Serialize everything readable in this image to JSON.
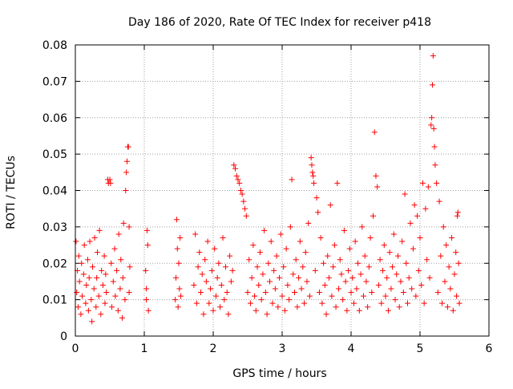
{
  "colors": {
    "marker": "#ff0000",
    "axis": "#000000",
    "grid": "#a0a0a0",
    "background": "#ffffff"
  },
  "chart_data": {
    "type": "scatter",
    "title": "Day 186 of 2020, Rate Of TEC Index for receiver p418",
    "xlabel": "GPS time / hours",
    "ylabel": "ROTI / TECUs",
    "xlim": [
      0,
      6
    ],
    "ylim": [
      0,
      0.08
    ],
    "x_ticks": [
      0,
      1,
      2,
      3,
      4,
      5,
      6
    ],
    "x_tick_labels": [
      "0",
      "1",
      "2",
      "3",
      "4",
      "5",
      "6"
    ],
    "y_ticks": [
      0,
      0.01,
      0.02,
      0.03,
      0.04,
      0.05,
      0.06,
      0.07,
      0.08
    ],
    "y_tick_labels": [
      "0",
      "0.01",
      "0.02",
      "0.03",
      "0.04",
      "0.05",
      "0.06",
      "0.07",
      "0.08"
    ],
    "grid": true,
    "marker": "+",
    "series": [
      {
        "name": "ROTI",
        "points": [
          [
            0.01,
            0.026
          ],
          [
            0.02,
            0.012
          ],
          [
            0.03,
            0.018
          ],
          [
            0.04,
            0.008
          ],
          [
            0.05,
            0.022
          ],
          [
            0.06,
            0.015
          ],
          [
            0.08,
            0.006
          ],
          [
            0.09,
            0.02
          ],
          [
            0.1,
            0.011
          ],
          [
            0.12,
            0.017
          ],
          [
            0.13,
            0.025
          ],
          [
            0.15,
            0.009
          ],
          [
            0.16,
            0.014
          ],
          [
            0.18,
            0.021
          ],
          [
            0.19,
            0.007
          ],
          [
            0.2,
            0.016
          ],
          [
            0.21,
            0.026
          ],
          [
            0.23,
            0.01
          ],
          [
            0.24,
            0.004
          ],
          [
            0.25,
            0.019
          ],
          [
            0.27,
            0.013
          ],
          [
            0.28,
            0.027
          ],
          [
            0.3,
            0.008
          ],
          [
            0.31,
            0.016
          ],
          [
            0.32,
            0.023
          ],
          [
            0.34,
            0.011
          ],
          [
            0.35,
            0.029
          ],
          [
            0.37,
            0.006
          ],
          [
            0.38,
            0.018
          ],
          [
            0.4,
            0.014
          ],
          [
            0.42,
            0.022
          ],
          [
            0.43,
            0.009
          ],
          [
            0.44,
            0.017
          ],
          [
            0.45,
            0.012
          ],
          [
            0.47,
            0.043
          ],
          [
            0.48,
            0.042
          ],
          [
            0.5,
            0.043
          ],
          [
            0.51,
            0.042
          ],
          [
            0.52,
            0.02
          ],
          [
            0.53,
            0.008
          ],
          [
            0.55,
            0.015
          ],
          [
            0.57,
            0.024
          ],
          [
            0.58,
            0.011
          ],
          [
            0.6,
            0.018
          ],
          [
            0.62,
            0.007
          ],
          [
            0.63,
            0.028
          ],
          [
            0.65,
            0.013
          ],
          [
            0.66,
            0.021
          ],
          [
            0.68,
            0.005
          ],
          [
            0.69,
            0.016
          ],
          [
            0.7,
            0.031
          ],
          [
            0.72,
            0.01
          ],
          [
            0.73,
            0.04
          ],
          [
            0.74,
            0.045
          ],
          [
            0.75,
            0.048
          ],
          [
            0.76,
            0.052
          ],
          [
            0.77,
            0.052
          ],
          [
            0.78,
            0.03
          ],
          [
            0.78,
            0.012
          ],
          [
            0.79,
            0.019
          ],
          [
            1.02,
            0.018
          ],
          [
            1.03,
            0.013
          ],
          [
            1.03,
            0.01
          ],
          [
            1.04,
            0.029
          ],
          [
            1.05,
            0.025
          ],
          [
            1.06,
            0.007
          ],
          [
            1.45,
            0.01
          ],
          [
            1.46,
            0.016
          ],
          [
            1.47,
            0.032
          ],
          [
            1.48,
            0.024
          ],
          [
            1.49,
            0.008
          ],
          [
            1.5,
            0.02
          ],
          [
            1.51,
            0.013
          ],
          [
            1.52,
            0.027
          ],
          [
            1.53,
            0.011
          ],
          [
            1.72,
            0.014
          ],
          [
            1.74,
            0.028
          ],
          [
            1.76,
            0.009
          ],
          [
            1.78,
            0.019
          ],
          [
            1.8,
            0.023
          ],
          [
            1.82,
            0.012
          ],
          [
            1.84,
            0.017
          ],
          [
            1.86,
            0.006
          ],
          [
            1.88,
            0.021
          ],
          [
            1.9,
            0.015
          ],
          [
            1.92,
            0.026
          ],
          [
            1.94,
            0.009
          ],
          [
            1.96,
            0.013
          ],
          [
            1.98,
            0.018
          ],
          [
            2.0,
            0.007
          ],
          [
            2.02,
            0.024
          ],
          [
            2.04,
            0.011
          ],
          [
            2.06,
            0.016
          ],
          [
            2.08,
            0.02
          ],
          [
            2.1,
            0.008
          ],
          [
            2.12,
            0.014
          ],
          [
            2.14,
            0.027
          ],
          [
            2.16,
            0.01
          ],
          [
            2.18,
            0.019
          ],
          [
            2.2,
            0.012
          ],
          [
            2.22,
            0.006
          ],
          [
            2.24,
            0.022
          ],
          [
            2.26,
            0.015
          ],
          [
            2.28,
            0.018
          ],
          [
            2.3,
            0.047
          ],
          [
            2.32,
            0.046
          ],
          [
            2.34,
            0.044
          ],
          [
            2.36,
            0.043
          ],
          [
            2.38,
            0.042
          ],
          [
            2.4,
            0.04
          ],
          [
            2.42,
            0.039
          ],
          [
            2.44,
            0.037
          ],
          [
            2.46,
            0.035
          ],
          [
            2.48,
            0.033
          ],
          [
            2.5,
            0.012
          ],
          [
            2.52,
            0.021
          ],
          [
            2.54,
            0.009
          ],
          [
            2.56,
            0.016
          ],
          [
            2.58,
            0.025
          ],
          [
            2.6,
            0.011
          ],
          [
            2.62,
            0.007
          ],
          [
            2.64,
            0.019
          ],
          [
            2.66,
            0.014
          ],
          [
            2.68,
            0.023
          ],
          [
            2.7,
            0.01
          ],
          [
            2.72,
            0.017
          ],
          [
            2.74,
            0.029
          ],
          [
            2.76,
            0.012
          ],
          [
            2.78,
            0.006
          ],
          [
            2.8,
            0.02
          ],
          [
            2.82,
            0.015
          ],
          [
            2.84,
            0.026
          ],
          [
            2.86,
            0.009
          ],
          [
            2.88,
            0.018
          ],
          [
            2.9,
            0.013
          ],
          [
            2.92,
            0.022
          ],
          [
            2.94,
            0.008
          ],
          [
            2.96,
            0.016
          ],
          [
            2.98,
            0.028
          ],
          [
            3.0,
            0.011
          ],
          [
            3.02,
            0.019
          ],
          [
            3.04,
            0.007
          ],
          [
            3.06,
            0.024
          ],
          [
            3.08,
            0.014
          ],
          [
            3.1,
            0.01
          ],
          [
            3.12,
            0.03
          ],
          [
            3.14,
            0.043
          ],
          [
            3.16,
            0.017
          ],
          [
            3.18,
            0.012
          ],
          [
            3.2,
            0.021
          ],
          [
            3.22,
            0.008
          ],
          [
            3.24,
            0.016
          ],
          [
            3.26,
            0.026
          ],
          [
            3.28,
            0.013
          ],
          [
            3.3,
            0.019
          ],
          [
            3.32,
            0.009
          ],
          [
            3.34,
            0.023
          ],
          [
            3.36,
            0.015
          ],
          [
            3.38,
            0.031
          ],
          [
            3.4,
            0.011
          ],
          [
            3.42,
            0.049
          ],
          [
            3.43,
            0.047
          ],
          [
            3.44,
            0.045
          ],
          [
            3.45,
            0.044
          ],
          [
            3.46,
            0.042
          ],
          [
            3.48,
            0.018
          ],
          [
            3.5,
            0.038
          ],
          [
            3.52,
            0.034
          ],
          [
            3.54,
            0.012
          ],
          [
            3.56,
            0.027
          ],
          [
            3.58,
            0.009
          ],
          [
            3.6,
            0.02
          ],
          [
            3.62,
            0.014
          ],
          [
            3.64,
            0.006
          ],
          [
            3.66,
            0.022
          ],
          [
            3.68,
            0.016
          ],
          [
            3.7,
            0.036
          ],
          [
            3.72,
            0.011
          ],
          [
            3.74,
            0.019
          ],
          [
            3.76,
            0.025
          ],
          [
            3.78,
            0.008
          ],
          [
            3.8,
            0.042
          ],
          [
            3.82,
            0.013
          ],
          [
            3.84,
            0.021
          ],
          [
            3.86,
            0.017
          ],
          [
            3.88,
            0.01
          ],
          [
            3.9,
            0.029
          ],
          [
            3.92,
            0.015
          ],
          [
            3.94,
            0.007
          ],
          [
            3.96,
            0.018
          ],
          [
            3.98,
            0.024
          ],
          [
            4.0,
            0.012
          ],
          [
            4.02,
            0.016
          ],
          [
            4.04,
            0.009
          ],
          [
            4.06,
            0.026
          ],
          [
            4.08,
            0.013
          ],
          [
            4.1,
            0.02
          ],
          [
            4.12,
            0.007
          ],
          [
            4.14,
            0.017
          ],
          [
            4.16,
            0.03
          ],
          [
            4.18,
            0.011
          ],
          [
            4.2,
            0.022
          ],
          [
            4.22,
            0.015
          ],
          [
            4.24,
            0.008
          ],
          [
            4.26,
            0.019
          ],
          [
            4.28,
            0.027
          ],
          [
            4.3,
            0.012
          ],
          [
            4.32,
            0.033
          ],
          [
            4.34,
            0.056
          ],
          [
            4.36,
            0.044
          ],
          [
            4.38,
            0.041
          ],
          [
            4.4,
            0.014
          ],
          [
            4.42,
            0.021
          ],
          [
            4.44,
            0.009
          ],
          [
            4.46,
            0.018
          ],
          [
            4.48,
            0.025
          ],
          [
            4.5,
            0.011
          ],
          [
            4.52,
            0.016
          ],
          [
            4.54,
            0.007
          ],
          [
            4.56,
            0.023
          ],
          [
            4.58,
            0.013
          ],
          [
            4.6,
            0.019
          ],
          [
            4.62,
            0.028
          ],
          [
            4.64,
            0.01
          ],
          [
            4.66,
            0.017
          ],
          [
            4.68,
            0.022
          ],
          [
            4.7,
            0.008
          ],
          [
            4.72,
            0.015
          ],
          [
            4.74,
            0.026
          ],
          [
            4.76,
            0.012
          ],
          [
            4.78,
            0.039
          ],
          [
            4.8,
            0.02
          ],
          [
            4.82,
            0.009
          ],
          [
            4.84,
            0.016
          ],
          [
            4.86,
            0.031
          ],
          [
            4.88,
            0.013
          ],
          [
            4.9,
            0.024
          ],
          [
            4.92,
            0.036
          ],
          [
            4.94,
            0.011
          ],
          [
            4.96,
            0.033
          ],
          [
            4.98,
            0.018
          ],
          [
            5.0,
            0.027
          ],
          [
            5.02,
            0.014
          ],
          [
            5.04,
            0.042
          ],
          [
            5.06,
            0.009
          ],
          [
            5.08,
            0.035
          ],
          [
            5.1,
            0.021
          ],
          [
            5.12,
            0.041
          ],
          [
            5.14,
            0.016
          ],
          [
            5.16,
            0.058
          ],
          [
            5.17,
            0.06
          ],
          [
            5.18,
            0.069
          ],
          [
            5.19,
            0.077
          ],
          [
            5.2,
            0.057
          ],
          [
            5.21,
            0.052
          ],
          [
            5.22,
            0.047
          ],
          [
            5.24,
            0.042
          ],
          [
            5.26,
            0.012
          ],
          [
            5.28,
            0.037
          ],
          [
            5.3,
            0.022
          ],
          [
            5.32,
            0.009
          ],
          [
            5.34,
            0.03
          ],
          [
            5.36,
            0.015
          ],
          [
            5.38,
            0.025
          ],
          [
            5.4,
            0.008
          ],
          [
            5.42,
            0.019
          ],
          [
            5.44,
            0.013
          ],
          [
            5.46,
            0.027
          ],
          [
            5.48,
            0.007
          ],
          [
            5.5,
            0.017
          ],
          [
            5.52,
            0.023
          ],
          [
            5.53,
            0.011
          ],
          [
            5.54,
            0.033
          ],
          [
            5.55,
            0.034
          ],
          [
            5.56,
            0.02
          ],
          [
            5.57,
            0.009
          ]
        ]
      }
    ]
  }
}
